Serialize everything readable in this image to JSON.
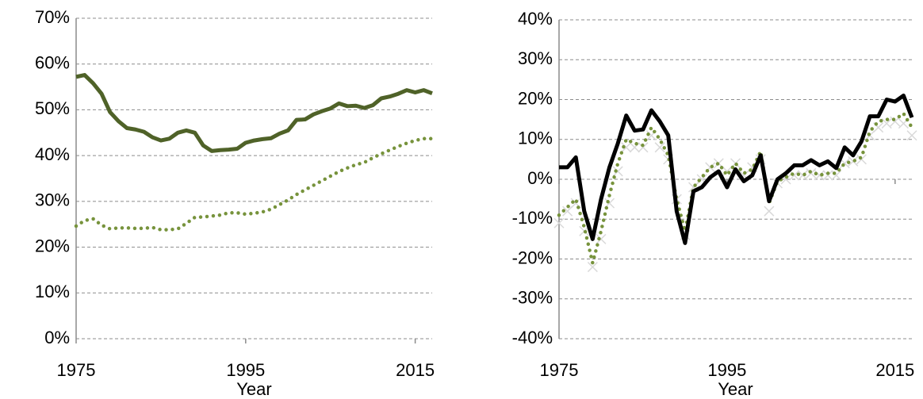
{
  "chart_data": [
    {
      "type": "line",
      "x_label": "Year",
      "x": [
        1975,
        1976,
        1977,
        1978,
        1979,
        1980,
        1981,
        1982,
        1983,
        1984,
        1985,
        1986,
        1987,
        1988,
        1989,
        1990,
        1991,
        1992,
        1993,
        1994,
        1995,
        1996,
        1997,
        1998,
        1999,
        2000,
        2001,
        2002,
        2003,
        2004,
        2005,
        2006,
        2007,
        2008,
        2009,
        2010,
        2011,
        2012,
        2013,
        2014,
        2015,
        2016,
        2017
      ],
      "xlim": [
        1975,
        2017
      ],
      "xticks": [
        1975,
        1995,
        2015
      ],
      "ylim": [
        0,
        70
      ],
      "yticks": [
        {
          "value": 0,
          "label": "0%"
        },
        {
          "value": 10,
          "label": "10%"
        },
        {
          "value": 20,
          "label": "20%"
        },
        {
          "value": 30,
          "label": "30%"
        },
        {
          "value": 40,
          "label": "40%"
        },
        {
          "value": 50,
          "label": "50%"
        },
        {
          "value": 60,
          "label": "60%"
        },
        {
          "value": 70,
          "label": "70%"
        }
      ],
      "grid": true,
      "series": [
        {
          "color": "#4f6228",
          "style": "solid",
          "values": [
            57.2,
            57.6,
            55.8,
            53.5,
            49.5,
            47.5,
            46,
            45.7,
            45.2,
            44,
            43.3,
            43.7,
            45,
            45.5,
            45,
            42.2,
            41,
            41.2,
            41.3,
            41.5,
            42.8,
            43.3,
            43.6,
            43.8,
            44.8,
            45.5,
            47.8,
            47.9,
            49,
            49.7,
            50.3,
            51.4,
            50.8,
            50.9,
            50.4,
            51,
            52.5,
            52.9,
            53.5,
            54.3,
            53.8,
            54.3,
            53.6
          ]
        },
        {
          "color": "#77933c",
          "style": "dotted",
          "values": [
            24.6,
            25.8,
            26.2,
            24.8,
            24,
            24.2,
            24.2,
            24.1,
            24.1,
            24.3,
            23.8,
            23.8,
            24,
            25.2,
            26.5,
            26.6,
            26.8,
            27,
            27.5,
            27.5,
            27.2,
            27.4,
            27.7,
            28.3,
            29.3,
            30.3,
            31.5,
            32.5,
            33.5,
            34.5,
            35.5,
            36.5,
            37.3,
            38,
            38.5,
            39.5,
            40.4,
            41.2,
            42,
            42.7,
            43.3,
            43.7,
            43.7
          ]
        }
      ]
    },
    {
      "type": "line",
      "x_label": "Year",
      "x": [
        1975,
        1976,
        1977,
        1978,
        1979,
        1980,
        1981,
        1982,
        1983,
        1984,
        1985,
        1986,
        1987,
        1988,
        1989,
        1990,
        1991,
        1992,
        1993,
        1994,
        1995,
        1996,
        1997,
        1998,
        1999,
        2000,
        2001,
        2002,
        2003,
        2004,
        2005,
        2006,
        2007,
        2008,
        2009,
        2010,
        2011,
        2012,
        2013,
        2014,
        2015,
        2016,
        2017
      ],
      "xlim": [
        1975,
        2017
      ],
      "xticks": [
        1975,
        1995,
        2015
      ],
      "ylim": [
        -40,
        40
      ],
      "yticks": [
        {
          "value": -40,
          "label": "-40%"
        },
        {
          "value": -30,
          "label": "-30%"
        },
        {
          "value": -20,
          "label": "-20%"
        },
        {
          "value": -10,
          "label": "-10%"
        },
        {
          "value": 0,
          "label": "0%"
        },
        {
          "value": 10,
          "label": "10%"
        },
        {
          "value": 20,
          "label": "20%"
        },
        {
          "value": 30,
          "label": "30%"
        },
        {
          "value": 40,
          "label": "40%"
        }
      ],
      "grid": true,
      "series": [
        {
          "color": "#d9d9d9",
          "style": "cross",
          "values": [
            -11,
            -8,
            -6,
            -13,
            -22,
            -15,
            -6,
            2,
            8,
            8,
            8,
            11,
            8,
            5,
            -5,
            -14,
            -2,
            0,
            3,
            4,
            2,
            4,
            1,
            3,
            5,
            -8,
            -1,
            0,
            1,
            1,
            1.5,
            1,
            1,
            1,
            4,
            4.5,
            5,
            11,
            13,
            14,
            14.5,
            14,
            11
          ]
        },
        {
          "color": "#77933c",
          "style": "dotted",
          "values": [
            -9,
            -7,
            -5,
            -12,
            -21,
            -13,
            -4,
            4,
            10,
            9,
            8.5,
            13,
            10,
            6,
            -5,
            -13,
            -2,
            0.5,
            3,
            4,
            1,
            4,
            1.5,
            2.5,
            7,
            -6,
            -0.5,
            0.5,
            1.5,
            1,
            2,
            1,
            1.5,
            1.5,
            4,
            4.5,
            5.5,
            12,
            14.5,
            15,
            15,
            16.5,
            13
          ]
        },
        {
          "color": "#000000",
          "style": "solid",
          "values": [
            3,
            3,
            5.5,
            -8,
            -15,
            -5,
            3,
            9,
            16,
            12.2,
            12.5,
            17.3,
            14.5,
            11,
            -8,
            -16,
            -3,
            -2,
            0.5,
            2,
            -2,
            2.5,
            -0.5,
            1,
            6,
            -5.5,
            0,
            1.5,
            3.5,
            3.5,
            4.8,
            3.5,
            4.5,
            2.8,
            8,
            6,
            9.5,
            15.8,
            15.8,
            20,
            19.5,
            21,
            15.5
          ]
        }
      ]
    }
  ]
}
